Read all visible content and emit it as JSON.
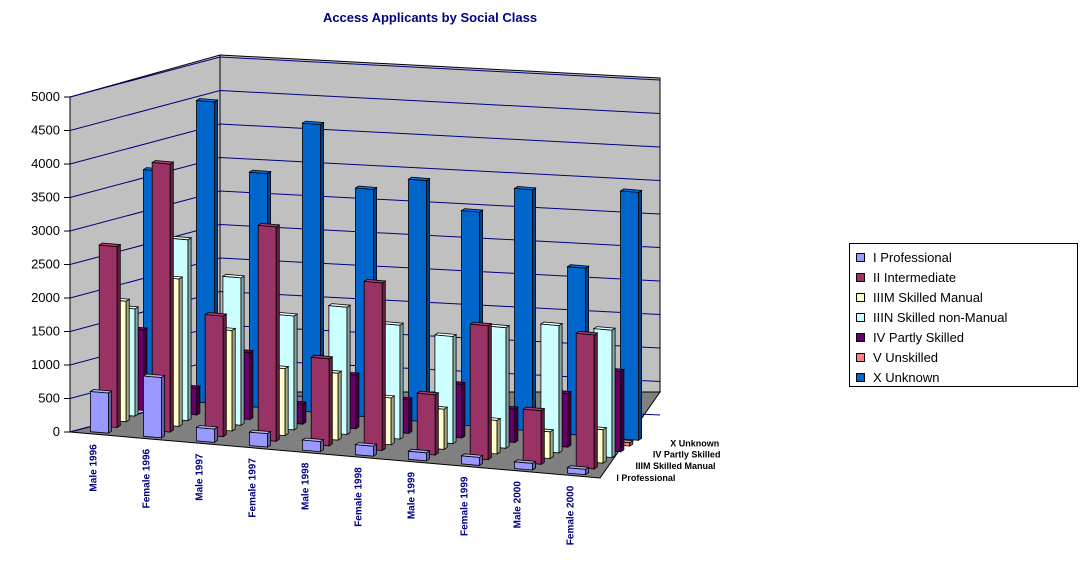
{
  "chart_data": {
    "type": "bar",
    "title": "Access Applicants by Social Class",
    "categories": [
      "Male 1996",
      "Female 1996",
      "Male 1997",
      "Female 1997",
      "Male 1998",
      "Female 1998",
      "Male 1999",
      "Female 1999",
      "Male 2000",
      "Female 2000"
    ],
    "depth_labels": [
      "I  Professional",
      "IIIM Skilled Manual",
      "IV  Partly Skilled",
      "X  Unknown"
    ],
    "yticks": [
      "0",
      "500",
      "1000",
      "1500",
      "2000",
      "2500",
      "3000",
      "3500",
      "4000",
      "4500",
      "5000"
    ],
    "ylim": [
      0,
      5000
    ],
    "series": [
      {
        "name": "I   Professional",
        "color": "#9999FF",
        "values": [
          600,
          900,
          200,
          200,
          150,
          150,
          120,
          120,
          100,
          80
        ]
      },
      {
        "name": "II   Intermediate",
        "color": "#993366",
        "values": [
          2700,
          4000,
          1800,
          3200,
          1300,
          2500,
          900,
          2000,
          800,
          2000
        ]
      },
      {
        "name": "IIIM Skilled Manual",
        "color": "#FFFFCC",
        "values": [
          1800,
          2200,
          1500,
          1000,
          1000,
          700,
          600,
          500,
          400,
          500
        ]
      },
      {
        "name": "IIIN Skilled non-Manual",
        "color": "#CCFFFF",
        "values": [
          1600,
          2700,
          2200,
          1700,
          1900,
          1700,
          1600,
          1800,
          1900,
          1900
        ]
      },
      {
        "name": "IV   Partly Skilled",
        "color": "#660066",
        "values": [
          1200,
          400,
          1000,
          300,
          800,
          500,
          800,
          500,
          800,
          1200
        ]
      },
      {
        "name": "V    Unskilled",
        "color": "#FF8080",
        "values": [
          0,
          0,
          0,
          0,
          0,
          0,
          0,
          0,
          0,
          50
        ]
      },
      {
        "name": "X    Unknown",
        "color": "#0066CC",
        "values": [
          3400,
          4500,
          3500,
          4300,
          3400,
          3600,
          3200,
          3600,
          2500,
          3700
        ]
      }
    ],
    "legend_position": "right",
    "grid": true
  }
}
